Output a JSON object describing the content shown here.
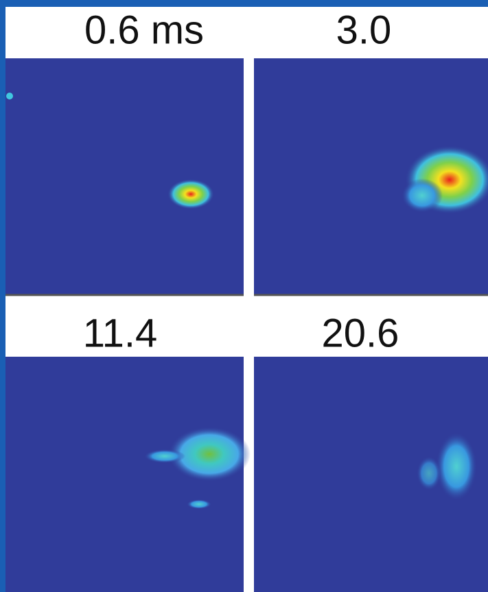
{
  "panels": [
    {
      "label": "0.6 ms"
    },
    {
      "label": "3.0"
    },
    {
      "label": "11.4"
    },
    {
      "label": "20.6"
    }
  ]
}
